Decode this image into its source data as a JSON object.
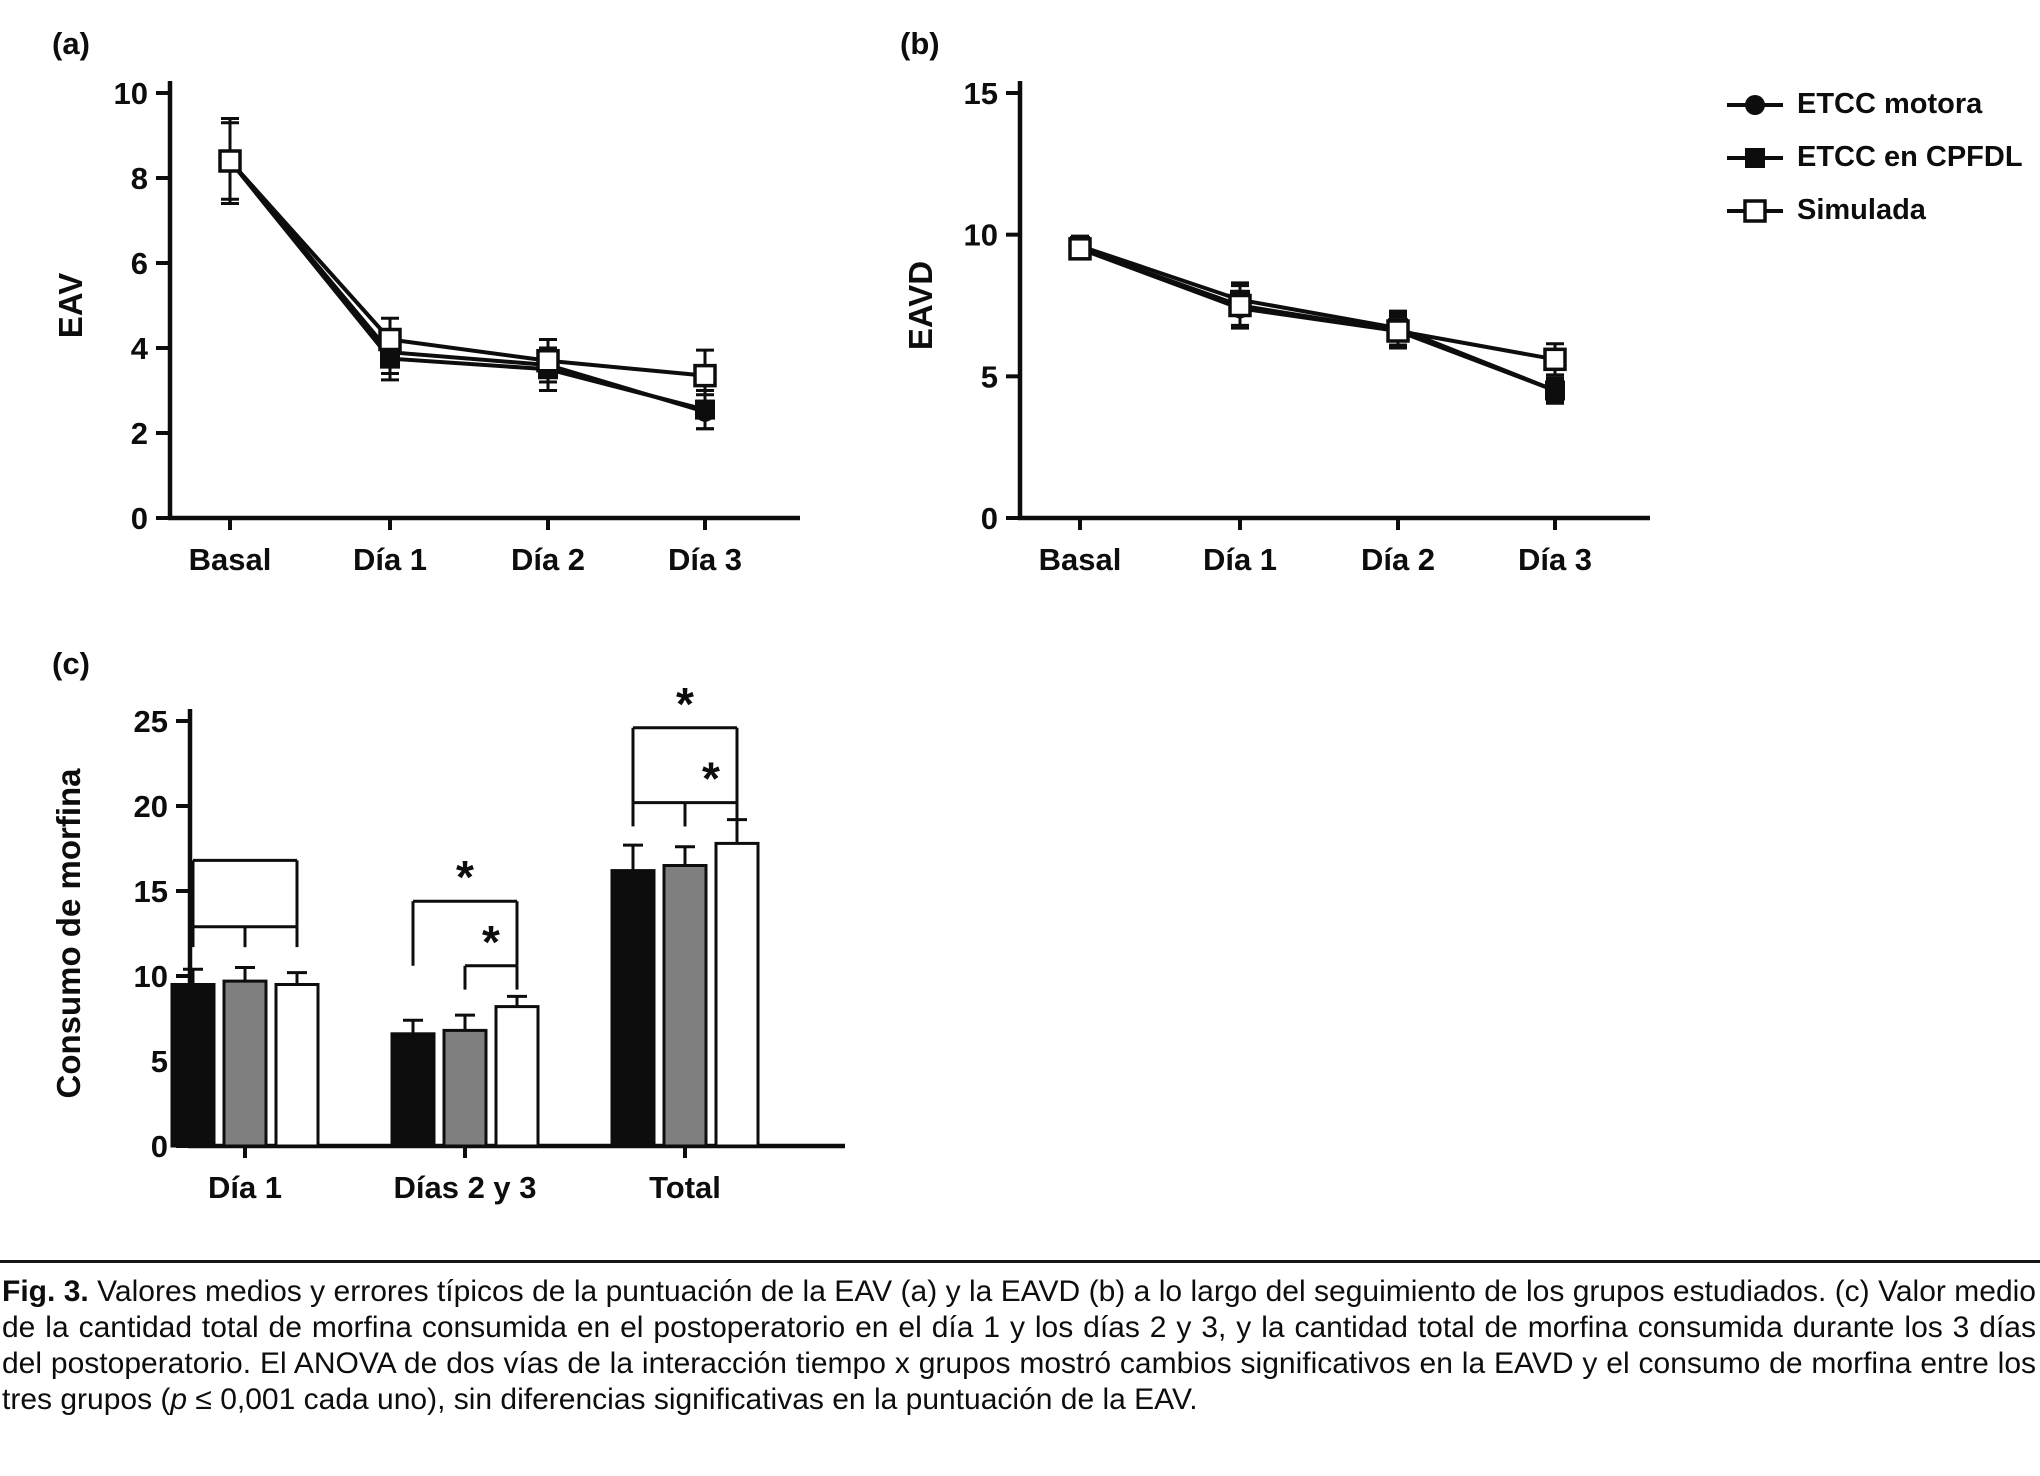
{
  "colors": {
    "ink": "#0d0d0d",
    "gray_bar": "#7f7f7f",
    "white_bar": "#ffffff"
  },
  "legend": {
    "items": [
      {
        "label": "ETCC motora",
        "marker": "filled-circle"
      },
      {
        "label": "ETCC en CPFDL",
        "marker": "filled-square"
      },
      {
        "label": "Simulada",
        "marker": "open-square"
      }
    ]
  },
  "chart_data": [
    {
      "id": "a",
      "panel_label": "(a)",
      "type": "line",
      "ylabel": "EAV",
      "ylim": [
        0,
        10
      ],
      "yticks": [
        0,
        2,
        4,
        6,
        8,
        10
      ],
      "categories": [
        "Basal",
        "Día 1",
        "Día 2",
        "Día 3"
      ],
      "legend_position": "outside-right",
      "grid": false,
      "series": [
        {
          "name": "ETCC motora",
          "marker": "filled-circle",
          "values": [
            8.4,
            3.9,
            3.6,
            2.5
          ],
          "errors": [
            1.0,
            0.5,
            0.4,
            0.4
          ]
        },
        {
          "name": "ETCC en CPFDL",
          "marker": "filled-square",
          "values": [
            8.4,
            3.75,
            3.5,
            2.55
          ],
          "errors": [
            0.9,
            0.5,
            0.5,
            0.45
          ]
        },
        {
          "name": "Simulada",
          "marker": "open-square",
          "values": [
            8.4,
            4.2,
            3.7,
            3.35
          ],
          "errors": [
            1.0,
            0.5,
            0.5,
            0.6
          ]
        }
      ]
    },
    {
      "id": "b",
      "panel_label": "(b)",
      "type": "line",
      "ylabel": "EAVD",
      "ylim": [
        0,
        15
      ],
      "yticks": [
        0,
        5,
        10,
        15
      ],
      "categories": [
        "Basal",
        "Día 1",
        "Día 2",
        "Día 3"
      ],
      "grid": false,
      "series": [
        {
          "name": "ETCC motora",
          "marker": "filled-circle",
          "values": [
            9.5,
            7.4,
            6.6,
            4.5
          ],
          "errors": [
            0.35,
            0.6,
            0.5,
            0.4
          ]
        },
        {
          "name": "ETCC en CPFDL",
          "marker": "filled-square",
          "values": [
            9.6,
            7.7,
            6.7,
            4.5
          ],
          "errors": [
            0.35,
            0.5,
            0.6,
            0.45
          ]
        },
        {
          "name": "Simulada",
          "marker": "open-square",
          "values": [
            9.5,
            7.5,
            6.6,
            5.6
          ],
          "errors": [
            0.3,
            0.8,
            0.6,
            0.55
          ]
        }
      ]
    },
    {
      "id": "c",
      "panel_label": "(c)",
      "type": "bar",
      "ylabel": "Consumo de morfina",
      "ylim": [
        0,
        25
      ],
      "yticks": [
        0,
        5,
        10,
        15,
        20,
        25
      ],
      "categories": [
        "Día 1",
        "Días 2 y 3",
        "Total"
      ],
      "grid": false,
      "series": [
        {
          "name": "ETCC motora",
          "color": "#0d0d0d",
          "values": [
            9.5,
            6.6,
            16.2
          ],
          "errors": [
            0.9,
            0.8,
            1.5
          ]
        },
        {
          "name": "ETCC en CPFDL",
          "color": "#7f7f7f",
          "values": [
            9.7,
            6.8,
            16.5
          ],
          "errors": [
            0.8,
            0.9,
            1.1
          ]
        },
        {
          "name": "Simulada",
          "color": "#ffffff",
          "values": [
            9.5,
            8.2,
            17.8
          ],
          "errors": [
            0.7,
            0.6,
            1.4
          ]
        }
      ],
      "brackets": [
        {
          "group": 0,
          "from": 0,
          "to": 2,
          "y": 16.8,
          "drop": 3.9,
          "label": ""
        },
        {
          "group": 0,
          "from": 0,
          "to": 1,
          "y": 12.9,
          "drop": 1.2,
          "label": ""
        },
        {
          "group": 0,
          "from": 1,
          "to": 2,
          "y": 12.9,
          "drop": 1.2,
          "label": ""
        },
        {
          "group": 1,
          "from": 0,
          "to": 2,
          "y": 14.4,
          "drop": 3.8,
          "label": "*"
        },
        {
          "group": 1,
          "from": 1,
          "to": 2,
          "y": 10.6,
          "drop": 1.4,
          "label": "*"
        },
        {
          "group": 2,
          "from": 0,
          "to": 2,
          "y": 24.6,
          "drop": 4.4,
          "label": "*"
        },
        {
          "group": 2,
          "from": 0,
          "to": 1,
          "y": 20.2,
          "drop": 1.4,
          "label": ""
        },
        {
          "group": 2,
          "from": 1,
          "to": 2,
          "y": 20.2,
          "drop": 1.4,
          "label": "*"
        }
      ]
    }
  ],
  "caption": {
    "label": "Fig. 3.",
    "segments": [
      {
        "style": "normal",
        "text": " Valores medios y errores típicos de la puntuación de la EAV (a) y la EAVD (b) a lo largo del seguimiento de los grupos estudiados. (c) Valor medio de la cantidad total de morfina consumida en el postoperatorio en el día 1 y los días 2 y 3, y la cantidad total de morfina consumida durante los 3 días del postoperatorio. El ANOVA de dos vías de la interacción tiempo x grupos mostró cambios significativos en la EAVD y el consumo de morfina entre los tres grupos ("
      },
      {
        "style": "italic",
        "text": "p"
      },
      {
        "style": "normal",
        "text": " ≤ 0,001 cada uno), sin diferencias significativas en la puntuación de la EAV."
      }
    ]
  }
}
